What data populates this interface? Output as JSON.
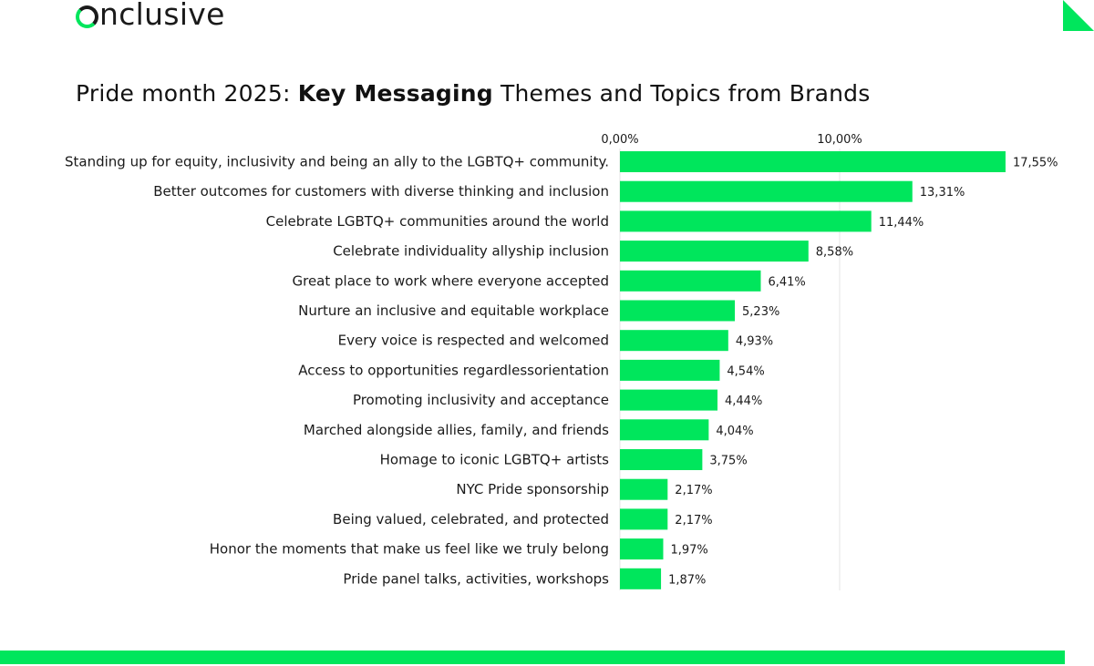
{
  "brand": {
    "logo_text": "nclusive",
    "accent": "#00e65c"
  },
  "title": {
    "prefix": "Pride month 2025: ",
    "bold": "Key Messaging",
    "suffix": " Themes and Topics from Brands"
  },
  "chart_data": {
    "type": "bar",
    "orientation": "horizontal",
    "title": "Pride month 2025: Key Messaging Themes and Topics from Brands",
    "categories": [
      "Standing up for equity, inclusivity and being an ally to the LGBTQ+ community.",
      "Better outcomes for customers with diverse thinking and inclusion",
      "Celebrate LGBTQ+ communities around the world",
      "Celebrate individuality allyship inclusion",
      "Great place to work where everyone accepted",
      "Nurture an inclusive and equitable workplace",
      "Every voice is respected and welcomed",
      "Access to opportunities regardlessorientation",
      "Promoting inclusivity and acceptance",
      "Marched alongside allies, family, and friends",
      "Homage to iconic LGBTQ+ artists",
      "NYC Pride sponsorship",
      "Being valued, celebrated, and protected",
      "Honor the moments that make us feel like we truly belong",
      "Pride panel talks, activities, workshops"
    ],
    "values": [
      17.55,
      13.31,
      11.44,
      8.58,
      6.41,
      5.23,
      4.93,
      4.54,
      4.44,
      4.04,
      3.75,
      2.17,
      2.17,
      1.97,
      1.87
    ],
    "value_labels": [
      "17,55%",
      "13,31%",
      "11,44%",
      "8,58%",
      "6,41%",
      "5,23%",
      "4,93%",
      "4,54%",
      "4,44%",
      "4,04%",
      "3,75%",
      "2,17%",
      "2,17%",
      "1,97%",
      "1,87%"
    ],
    "x_ticks": [
      0,
      10
    ],
    "x_tick_labels": [
      "0,00%",
      "10,00%"
    ],
    "xlim": [
      0,
      17.55
    ],
    "grid": true,
    "legend": "none",
    "bar_color": "#00e65c"
  }
}
